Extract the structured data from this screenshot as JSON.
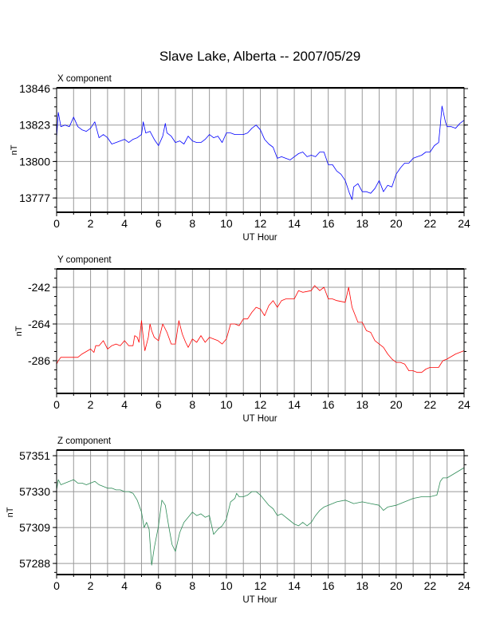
{
  "title": "Slave Lake, Alberta -- 2007/05/29",
  "chart_data": [
    {
      "type": "line",
      "title": "X component",
      "xlabel": "UT Hour",
      "ylabel": "nT",
      "color": "#0000ff",
      "xlim": [
        0,
        24
      ],
      "ylim": [
        13768,
        13846.5
      ],
      "xticks": [
        0,
        2,
        4,
        6,
        8,
        10,
        12,
        14,
        16,
        18,
        20,
        22,
        24
      ],
      "yticks": [
        13846,
        13823,
        13800,
        13777
      ],
      "grid": true,
      "x": [
        0,
        0.1,
        0.25,
        0.5,
        0.75,
        1,
        1.25,
        1.5,
        1.75,
        2,
        2.25,
        2.5,
        2.75,
        3,
        3.25,
        3.5,
        3.75,
        4,
        4.25,
        4.5,
        4.75,
        5,
        5.1,
        5.25,
        5.5,
        5.75,
        6,
        6.25,
        6.4,
        6.5,
        6.75,
        7,
        7.25,
        7.5,
        7.75,
        8,
        8.25,
        8.5,
        8.75,
        9,
        9.25,
        9.5,
        9.75,
        10,
        10.25,
        10.5,
        10.75,
        11,
        11.25,
        11.5,
        11.75,
        12,
        12.25,
        12.5,
        12.75,
        13,
        13.25,
        13.5,
        13.75,
        14,
        14.25,
        14.5,
        14.75,
        15,
        15.25,
        15.5,
        15.75,
        16,
        16.25,
        16.5,
        16.75,
        17,
        17.25,
        17.4,
        17.5,
        17.75,
        18,
        18.25,
        18.5,
        18.75,
        19,
        19.25,
        19.5,
        19.75,
        20,
        20.25,
        20.5,
        20.75,
        21,
        21.25,
        21.5,
        21.75,
        22,
        22.25,
        22.5,
        22.6,
        22.7,
        22.9,
        23,
        23.25,
        23.5,
        23.75,
        24
      ],
      "y": [
        13815,
        13831,
        13822,
        13823,
        13822,
        13828,
        13822,
        13820,
        13819,
        13821,
        13825,
        13815,
        13817,
        13815,
        13811,
        13812,
        13813,
        13814,
        13812,
        13814,
        13815,
        13817,
        13825,
        13818,
        13819,
        13814,
        13810,
        13816,
        13824,
        13818,
        13816,
        13812,
        13813,
        13811,
        13816,
        13813,
        13812,
        13812,
        13814,
        13817,
        13815,
        13816,
        13812,
        13818,
        13818,
        13817,
        13817,
        13817,
        13818,
        13821,
        13823,
        13820,
        13814,
        13811,
        13809,
        13802,
        13803,
        13802,
        13801,
        13803,
        13805,
        13806,
        13803,
        13804,
        13803,
        13806,
        13806,
        13798,
        13798,
        13794,
        13792,
        13788,
        13780,
        13776,
        13784,
        13786,
        13781,
        13781,
        13780,
        13783,
        13788,
        13781,
        13785,
        13784,
        13792,
        13796,
        13799,
        13799,
        13802,
        13803,
        13804,
        13806,
        13806,
        13810,
        13812,
        13823,
        13835,
        13825,
        13822,
        13822,
        13821,
        13824,
        13826
      ]
    },
    {
      "type": "line",
      "title": "Y component",
      "xlabel": "UT Hour",
      "ylabel": "nT",
      "color": "#ff0000",
      "xlim": [
        0,
        24
      ],
      "ylim": [
        -305.6,
        -231
      ],
      "xticks": [
        0,
        2,
        4,
        6,
        8,
        10,
        12,
        14,
        16,
        18,
        20,
        22,
        24
      ],
      "yticks": [
        -242,
        -264,
        -286
      ],
      "grid": true,
      "x": [
        0,
        0.1,
        0.25,
        0.5,
        1,
        1.25,
        1.5,
        2,
        2.2,
        2.3,
        2.5,
        2.75,
        3,
        3.25,
        3.5,
        3.75,
        4,
        4.25,
        4.5,
        4.6,
        4.75,
        4.85,
        5,
        5.1,
        5.2,
        5.4,
        5.5,
        5.6,
        5.75,
        6,
        6.25,
        6.5,
        6.75,
        7,
        7.2,
        7.4,
        7.6,
        7.75,
        8,
        8.25,
        8.5,
        8.75,
        9,
        9.5,
        9.75,
        10,
        10.25,
        10.5,
        10.75,
        11,
        11.25,
        11.5,
        11.75,
        12,
        12.25,
        12.5,
        12.75,
        13,
        13.25,
        13.5,
        13.75,
        14,
        14.25,
        14.5,
        15,
        15.2,
        15.5,
        15.75,
        16,
        16.25,
        16.5,
        17,
        17.2,
        17.4,
        17.75,
        18,
        18.25,
        18.5,
        18.75,
        19,
        19.25,
        19.5,
        19.75,
        20,
        20.25,
        20.5,
        20.75,
        21,
        21.25,
        21.5,
        21.75,
        22,
        22.5,
        22.75,
        23,
        23.5,
        24
      ],
      "y": [
        -288,
        -286,
        -284,
        -284,
        -284,
        -284,
        -282,
        -279,
        -281,
        -277,
        -277,
        -274,
        -279,
        -277,
        -276,
        -277,
        -274,
        -277,
        -277,
        -271,
        -272,
        -275,
        -262,
        -272,
        -280,
        -272,
        -264,
        -268,
        -272,
        -274,
        -264,
        -269,
        -276,
        -276,
        -262,
        -270,
        -275,
        -278,
        -273,
        -275,
        -271,
        -275,
        -272,
        -274,
        -276,
        -273,
        -264,
        -264,
        -265,
        -261,
        -261,
        -257,
        -254,
        -255,
        -259,
        -253,
        -250,
        -254,
        -250,
        -249,
        -249,
        -249,
        -244,
        -245,
        -244,
        -241,
        -244,
        -242,
        -249,
        -249,
        -250,
        -251,
        -242,
        -254,
        -263,
        -263,
        -268,
        -269,
        -274,
        -276,
        -278,
        -282,
        -285,
        -287,
        -287,
        -288,
        -292,
        -292,
        -293,
        -293,
        -291,
        -290,
        -290,
        -286,
        -285,
        -282,
        -280
      ]
    },
    {
      "type": "line",
      "title": "Z component",
      "xlabel": "UT Hour",
      "ylabel": "nT",
      "color": "#2e8b57",
      "xlim": [
        0,
        24
      ],
      "ylim": [
        57281.5,
        57354.3
      ],
      "xticks": [
        0,
        2,
        4,
        6,
        8,
        10,
        12,
        14,
        16,
        18,
        20,
        22,
        24
      ],
      "yticks": [
        57351,
        57330,
        57309,
        57288
      ],
      "grid": true,
      "x": [
        0,
        0.1,
        0.25,
        0.5,
        0.75,
        1,
        1.25,
        1.5,
        1.75,
        2,
        2.25,
        2.5,
        2.75,
        3,
        3.25,
        3.5,
        3.75,
        4,
        4.25,
        4.5,
        4.75,
        5,
        5.15,
        5.3,
        5.45,
        5.6,
        5.75,
        6,
        6.2,
        6.4,
        6.6,
        6.8,
        7,
        7.25,
        7.5,
        7.75,
        8,
        8.25,
        8.5,
        8.75,
        9,
        9.25,
        9.5,
        9.75,
        10,
        10.25,
        10.5,
        10.6,
        10.75,
        11,
        11.25,
        11.5,
        11.75,
        12,
        12.25,
        12.5,
        12.75,
        13,
        13.25,
        13.5,
        13.75,
        14,
        14.25,
        14.5,
        14.75,
        15,
        15.25,
        15.5,
        15.75,
        16,
        16.5,
        17,
        17.25,
        17.5,
        18,
        18.5,
        19,
        19.25,
        19.5,
        20,
        20.5,
        21,
        21.5,
        22,
        22.4,
        22.6,
        22.75,
        23,
        23.5,
        24
      ],
      "y": [
        57331,
        57337,
        57334,
        57335,
        57336,
        57337,
        57335,
        57335,
        57334,
        57335,
        57336,
        57334,
        57333,
        57332,
        57332,
        57331,
        57331,
        57330,
        57330,
        57329,
        57325,
        57318,
        57309,
        57312,
        57308,
        57287,
        57297,
        57310,
        57325,
        57322,
        57310,
        57299,
        57295,
        57306,
        57312,
        57315,
        57318,
        57316,
        57317,
        57315,
        57316,
        57305,
        57308,
        57310,
        57314,
        57324,
        57326,
        57329,
        57327,
        57327,
        57328,
        57330,
        57330,
        57328,
        57325,
        57322,
        57320,
        57316,
        57317,
        57315,
        57313,
        57311,
        57310,
        57312,
        57310,
        57312,
        57316,
        57319,
        57321,
        57322,
        57324,
        57325,
        57324,
        57323,
        57324,
        57323,
        57322,
        57319,
        57321,
        57322,
        57324,
        57326,
        57327,
        57327,
        57328,
        57336,
        57338,
        57338,
        57341,
        57344
      ]
    }
  ]
}
